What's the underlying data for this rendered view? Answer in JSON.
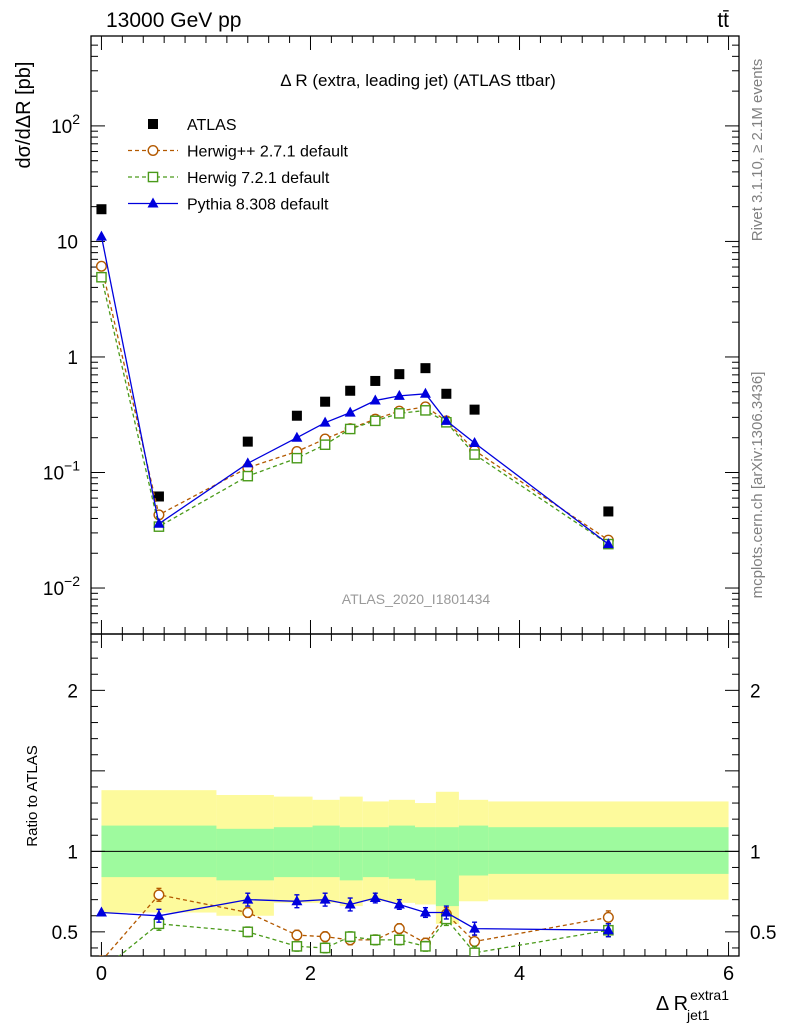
{
  "header": {
    "energy_label": "13000 GeV pp",
    "process_label": "tt̄"
  },
  "side_labels": {
    "rivet": "Rivet 3.1.10, ≥ 2.1M events",
    "mcplots": "mcplots.cern.ch [arXiv:1306.3436]"
  },
  "analysis_id": "ATLAS_2020_I1801434",
  "chart_data": [
    {
      "type": "scatter",
      "panel": "main",
      "title": "Δ R (extra, leading jet) (ATLAS ttbar)",
      "ylabel": "dσ/dΔR [pb]",
      "yscale": "log",
      "ylim": [
        0.004,
        600
      ],
      "xlim": [
        -0.1,
        6.1
      ],
      "x_ticks": [
        0,
        2,
        4,
        6
      ],
      "y_ticks": [
        {
          "value": 0.01,
          "base": "10",
          "exp": "−2"
        },
        {
          "value": 0.1,
          "base": "10",
          "exp": "−1"
        },
        {
          "value": 1,
          "base": "1",
          "exp": ""
        },
        {
          "value": 10,
          "base": "10",
          "exp": ""
        },
        {
          "value": 100,
          "base": "10",
          "exp": "2"
        }
      ],
      "x": [
        0.0,
        0.55,
        1.4,
        1.87,
        2.14,
        2.38,
        2.62,
        2.85,
        3.1,
        3.3,
        3.57,
        4.85
      ],
      "series": [
        {
          "name": "ATLAS",
          "style": "data",
          "color": "#000000",
          "values": [
            19,
            0.062,
            0.185,
            0.31,
            0.41,
            0.51,
            0.62,
            0.71,
            0.8,
            0.48,
            0.35,
            0.046
          ]
        },
        {
          "name": "Herwig++ 2.7.1 default",
          "style": "circle-dashed",
          "color": "#b35900",
          "values": [
            6.1,
            0.043,
            0.11,
            0.152,
            0.195,
            0.24,
            0.29,
            0.34,
            0.37,
            0.28,
            0.155,
            0.026
          ]
        },
        {
          "name": "Herwig 7.2.1 default",
          "style": "square-dashed",
          "color": "#4a9a1a",
          "values": [
            4.9,
            0.034,
            0.093,
            0.133,
            0.174,
            0.238,
            0.28,
            0.325,
            0.345,
            0.272,
            0.143,
            0.024
          ]
        },
        {
          "name": "Pythia 8.308 default",
          "style": "triangle-solid",
          "color": "#0000dd",
          "values": [
            11,
            0.036,
            0.12,
            0.2,
            0.27,
            0.33,
            0.42,
            0.46,
            0.48,
            0.28,
            0.18,
            0.024
          ]
        }
      ]
    },
    {
      "type": "scatter",
      "panel": "ratio",
      "ylabel": "Ratio to ATLAS",
      "ylim": [
        0.35,
        2.35
      ],
      "x_ticks": [
        0,
        2,
        4,
        6
      ],
      "y_ticks": [
        0.5,
        1,
        2
      ],
      "y_tick_labels": [
        "0.5",
        "1",
        "2"
      ],
      "uncertainty_bands": {
        "edges": [
          0.0,
          1.1,
          1.65,
          2.02,
          2.28,
          2.5,
          2.75,
          3.0,
          3.2,
          3.42,
          3.7,
          6.0
        ],
        "inner": [
          [
            0.84,
            1.16
          ],
          [
            0.82,
            1.14
          ],
          [
            0.84,
            1.15
          ],
          [
            0.84,
            1.16
          ],
          [
            0.82,
            1.15
          ],
          [
            0.84,
            1.15
          ],
          [
            0.83,
            1.16
          ],
          [
            0.82,
            1.15
          ],
          [
            0.66,
            1.15
          ],
          [
            0.85,
            1.16
          ],
          [
            0.86,
            1.15
          ]
        ],
        "outer": [
          [
            0.62,
            1.38
          ],
          [
            0.6,
            1.35
          ],
          [
            0.68,
            1.34
          ],
          [
            0.68,
            1.32
          ],
          [
            0.66,
            1.34
          ],
          [
            0.69,
            1.31
          ],
          [
            0.68,
            1.32
          ],
          [
            0.67,
            1.3
          ],
          [
            0.55,
            1.37
          ],
          [
            0.69,
            1.32
          ],
          [
            0.7,
            1.31
          ]
        ],
        "inner_color": "#9efa9e",
        "outer_color": "#fdfa9c"
      },
      "series": [
        {
          "name": "Herwig++ 2.7.1 default",
          "color": "#b35900",
          "values": [
            0.32,
            0.73,
            0.62,
            0.48,
            0.47,
            0.45,
            0.45,
            0.52,
            0.43,
            0.61,
            0.44,
            0.59
          ],
          "errors": [
            0.0,
            0.04,
            0.03,
            0.03,
            0.03,
            0.03,
            0.03,
            0.03,
            0.03,
            0.04,
            0.04,
            0.04
          ]
        },
        {
          "name": "Herwig 7.2.1 default",
          "color": "#4a9a1a",
          "values": [
            0.26,
            0.55,
            0.5,
            0.41,
            0.4,
            0.47,
            0.45,
            0.45,
            0.41,
            0.58,
            0.37,
            0.51
          ],
          "errors": [
            0.0,
            0.04,
            0.03,
            0.03,
            0.03,
            0.03,
            0.03,
            0.03,
            0.03,
            0.04,
            0.04,
            0.04
          ]
        },
        {
          "name": "Pythia 8.308 default",
          "color": "#0000dd",
          "values": [
            0.62,
            0.6,
            0.7,
            0.69,
            0.7,
            0.67,
            0.71,
            0.67,
            0.62,
            0.62,
            0.52,
            0.51
          ],
          "errors": [
            0.0,
            0.04,
            0.04,
            0.04,
            0.04,
            0.04,
            0.03,
            0.03,
            0.03,
            0.04,
            0.04,
            0.04
          ]
        }
      ]
    }
  ]
}
